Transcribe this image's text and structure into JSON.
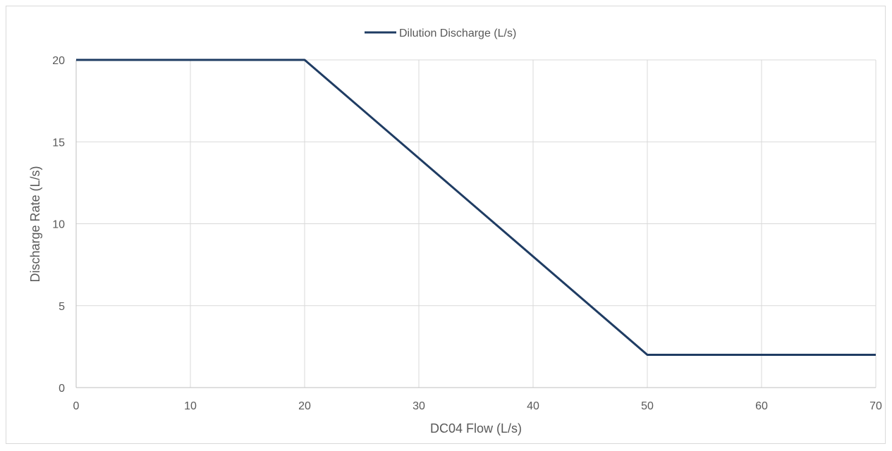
{
  "chart_data": {
    "type": "line",
    "title": "",
    "xlabel": "DC04 Flow (L/s)",
    "ylabel": "Discharge Rate (L/s)",
    "xlim": [
      0,
      70
    ],
    "ylim": [
      0,
      20
    ],
    "xticks": [
      0,
      10,
      20,
      30,
      40,
      50,
      60,
      70
    ],
    "yticks": [
      0,
      5,
      10,
      15,
      20
    ],
    "grid": true,
    "legend_position": "top-center",
    "series": [
      {
        "name": "Dilution Discharge (L/s)",
        "color": "#1f3c63",
        "x": [
          0,
          20,
          50,
          70
        ],
        "y": [
          20,
          20,
          2,
          2
        ]
      }
    ]
  }
}
